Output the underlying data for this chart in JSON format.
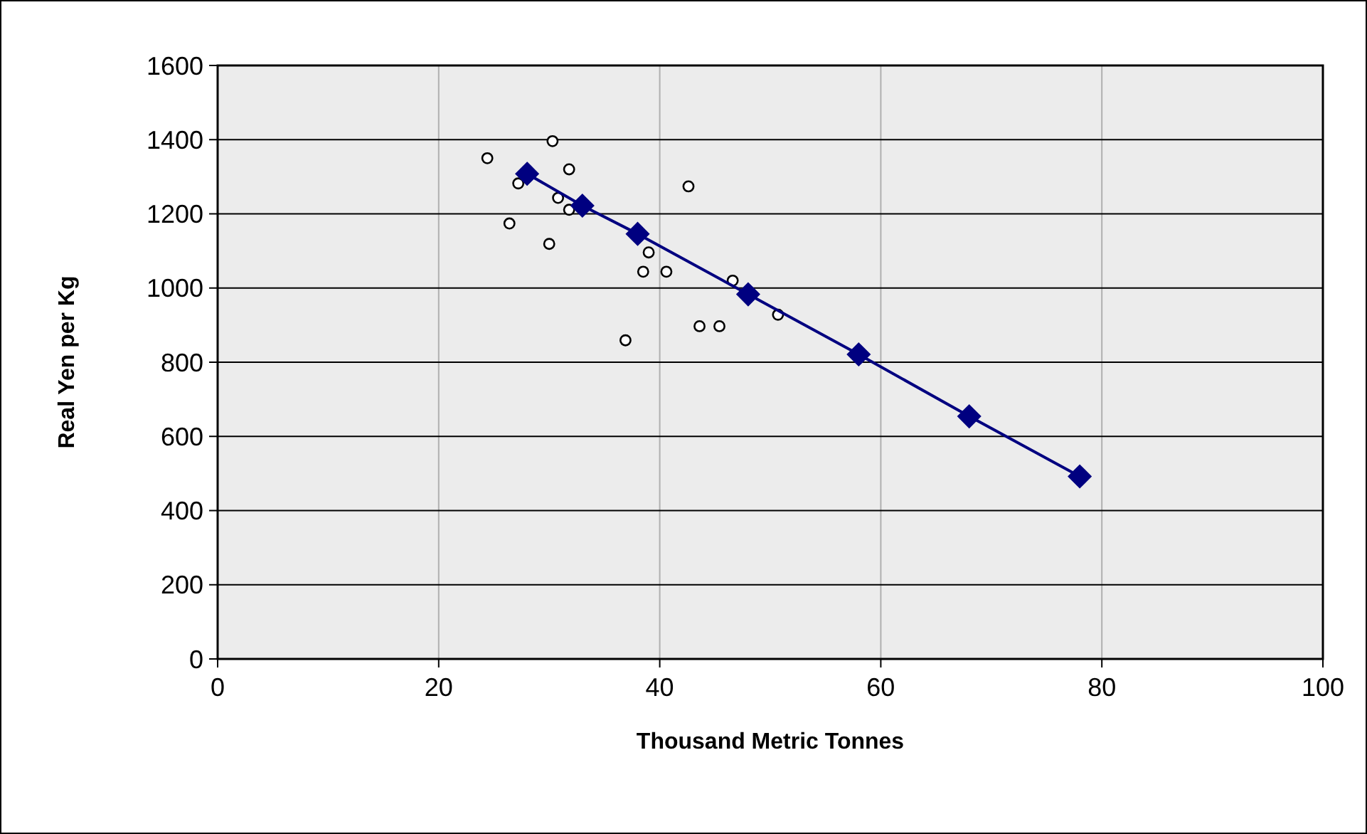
{
  "chart_data": {
    "type": "scatter",
    "xlabel": "Thousand Metric Tonnes",
    "ylabel": "Real Yen per Kg",
    "xlim": [
      0,
      100
    ],
    "xticks": [
      0,
      20,
      40,
      60,
      80,
      100
    ],
    "ylim": [
      0,
      1600
    ],
    "yticks": [
      0,
      200,
      400,
      600,
      800,
      1000,
      1200,
      1400,
      1600
    ],
    "grid": true,
    "series": [
      {
        "marker": "circle",
        "color": "#ffffff",
        "x": [
          24.4,
          30.3,
          31.8,
          27.2,
          30.8,
          31.8,
          26.4,
          30.0,
          42.6,
          39.0,
          38.5,
          40.6,
          46.6,
          36.9,
          43.6,
          45.4,
          50.7
        ],
        "values": [
          1350,
          1396,
          1320,
          1282,
          1243,
          1211,
          1174,
          1119,
          1274,
          1096,
          1044,
          1044,
          1020,
          859,
          897,
          897,
          928
        ]
      },
      {
        "type": "line",
        "marker": "none",
        "line_style": "solid",
        "color": "#000080",
        "x": [
          28,
          33,
          38,
          42.6,
          48,
          58,
          68,
          78
        ],
        "values": [
          1308,
          1222,
          1146,
          1071,
          983,
          821,
          654,
          492
        ]
      },
      {
        "marker": "diamond",
        "color": "#000080",
        "x": [
          28,
          33,
          38,
          48,
          58,
          68,
          78
        ],
        "values": [
          1308,
          1222,
          1146,
          983,
          821,
          654,
          492
        ]
      }
    ]
  }
}
